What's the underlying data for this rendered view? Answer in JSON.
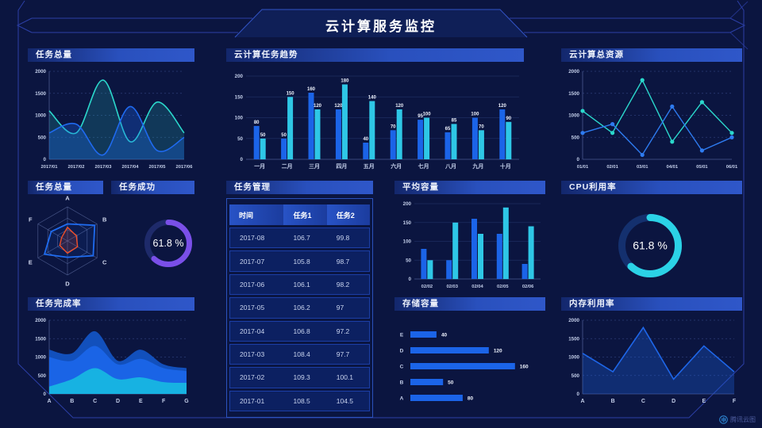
{
  "header": {
    "title": "云计算服务监控"
  },
  "watermark": {
    "label": "腾讯云图"
  },
  "colors": {
    "accent_blue": "#1b64e8",
    "accent_cyan": "#2ec7e6",
    "accent_teal": "#2bd8cc",
    "accent_purple": "#7a4fe8",
    "accent_red": "#f04e28",
    "frame_line": "#2c3fa6"
  },
  "panels": {
    "task_total_area": {
      "title": "任务总量",
      "chart_data": {
        "type": "area-smooth",
        "categories": [
          "2017/01",
          "2017/02",
          "2017/03",
          "2017/04",
          "2017/05",
          "2017/06"
        ],
        "ymax": 2000,
        "yticks": [
          0,
          500,
          1000,
          1500,
          2000
        ],
        "series": [
          {
            "name": "teal",
            "color": "#2bd8cc",
            "fill": "rgba(43,216,204,0.18)",
            "values": [
              1100,
              600,
              1800,
              400,
              1300,
              600
            ]
          },
          {
            "name": "blue",
            "color": "#1f6af0",
            "fill": "rgba(31,106,240,0.30)",
            "values": [
              600,
              800,
              100,
              1200,
              200,
              500
            ]
          }
        ]
      }
    },
    "task_trend_bars": {
      "title": "云计算任务趋势",
      "chart_data": {
        "type": "bar",
        "show_labels": true,
        "categories": [
          "一月",
          "二月",
          "三月",
          "四月",
          "五月",
          "六月",
          "七月",
          "八月",
          "九月",
          "十月"
        ],
        "ymax": 200,
        "yticks": [
          0,
          50,
          100,
          150,
          200
        ],
        "series": [
          {
            "name": "blue",
            "color": "#1b64e8",
            "values": [
              80,
              50,
              160,
              120,
              40,
              70,
              95,
              65,
              100,
              120
            ]
          },
          {
            "name": "cyan",
            "color": "#2ec7e6",
            "values": [
              50,
              150,
              120,
              180,
              140,
              120,
              100,
              85,
              70,
              90
            ]
          }
        ]
      }
    },
    "total_resources_line": {
      "title": "云计算总资源",
      "chart_data": {
        "type": "line",
        "categories": [
          "01/01",
          "02/01",
          "03/01",
          "04/01",
          "05/01",
          "06/01"
        ],
        "ymax": 2000,
        "yticks": [
          0,
          500,
          1000,
          1500,
          2000
        ],
        "series": [
          {
            "name": "teal",
            "color": "#2bd8cc",
            "values": [
              1100,
              600,
              1800,
              400,
              1300,
              600
            ]
          },
          {
            "name": "blue",
            "color": "#2e7bf0",
            "values": [
              600,
              800,
              100,
              1200,
              200,
              500
            ]
          }
        ]
      }
    },
    "task_total_radar": {
      "title": "任务总量",
      "chart_data": {
        "type": "radar",
        "axes": [
          "A",
          "B",
          "C",
          "D",
          "E",
          "F"
        ],
        "max": 100,
        "series": [
          {
            "name": "blue",
            "color": "#1f6cf0",
            "fill": "rgba(31,108,240,0.10)",
            "values": [
              50,
              92,
              87,
              48,
              78,
              55
            ]
          },
          {
            "name": "red",
            "color": "#f04e28",
            "fill": "rgba(240,78,40,0.15)",
            "values": [
              40,
              30,
              34,
              36,
              26,
              20
            ]
          }
        ]
      }
    },
    "task_success_donut": {
      "title": "任务成功",
      "chart_data": {
        "type": "donut",
        "percent": 61.8,
        "label": "61.8 %",
        "color": "#7a4fe8",
        "track": "#1e2a6a"
      }
    },
    "task_table": {
      "title": "任务管理",
      "chart_data": {
        "type": "table",
        "columns": [
          "时间",
          "任务1",
          "任务2"
        ],
        "rows": [
          [
            "2017-08",
            "106.7",
            "99.8"
          ],
          [
            "2017-07",
            "105.8",
            "98.7"
          ],
          [
            "2017-06",
            "106.1",
            "98.2"
          ],
          [
            "2017-05",
            "106.2",
            "97"
          ],
          [
            "2017-04",
            "106.8",
            "97.2"
          ],
          [
            "2017-03",
            "108.4",
            "97.7"
          ],
          [
            "2017-02",
            "109.3",
            "100.1"
          ],
          [
            "2017-01",
            "108.5",
            "104.5"
          ]
        ]
      }
    },
    "avg_capacity_bars": {
      "title": "平均容量",
      "chart_data": {
        "type": "bar",
        "show_labels": false,
        "categories": [
          "02/02",
          "02/03",
          "02/04",
          "02/05",
          "02/06"
        ],
        "ymax": 200,
        "yticks": [
          0,
          50,
          100,
          150,
          200
        ],
        "series": [
          {
            "name": "blue",
            "color": "#1b64e8",
            "values": [
              80,
              50,
              160,
              120,
              40
            ]
          },
          {
            "name": "cyan",
            "color": "#2ec7e6",
            "values": [
              50,
              150,
              120,
              190,
              140
            ]
          }
        ]
      }
    },
    "storage_hbars": {
      "title": "存储容量",
      "chart_data": {
        "type": "hbar",
        "categories": [
          "E",
          "D",
          "C",
          "B",
          "A"
        ],
        "values": [
          40,
          120,
          160,
          50,
          80
        ],
        "max": 170,
        "color": "#1b64e8"
      }
    },
    "cpu_donut": {
      "title": "CPU利用率",
      "chart_data": {
        "type": "donut",
        "percent": 61.8,
        "label": "61.8 %",
        "color": "#2bd2e6",
        "track": "#14306e"
      }
    },
    "mem_line": {
      "title": "内存利用率",
      "chart_data": {
        "type": "area-line",
        "categories": [
          "A",
          "B",
          "C",
          "D",
          "E",
          "F"
        ],
        "ymax": 2000,
        "yticks": [
          0,
          500,
          1000,
          1500,
          2000
        ],
        "color": "#1e66e8",
        "fill": "rgba(30,102,232,0.30)",
        "values": [
          1100,
          600,
          1800,
          400,
          1300,
          600
        ]
      }
    },
    "completion_area": {
      "title": "任务完成率",
      "chart_data": {
        "type": "area-stacked",
        "categories": [
          "A",
          "B",
          "C",
          "D",
          "E",
          "F",
          "G"
        ],
        "ymax": 2000,
        "yticks": [
          0,
          500,
          1000,
          1500,
          2000
        ],
        "layers": [
          {
            "name": "cyan",
            "color": "#17b2e2",
            "values": [
              200,
              400,
              700,
              400,
              450,
              320,
              300
            ]
          },
          {
            "name": "royal",
            "color": "#1a64e6",
            "values": [
              1000,
              900,
              1300,
              800,
              950,
              700,
              620
            ]
          },
          {
            "name": "deep",
            "color": "#1250bc",
            "values": [
              1200,
              1100,
              1700,
              900,
              1200,
              800,
              700
            ]
          }
        ]
      }
    }
  }
}
